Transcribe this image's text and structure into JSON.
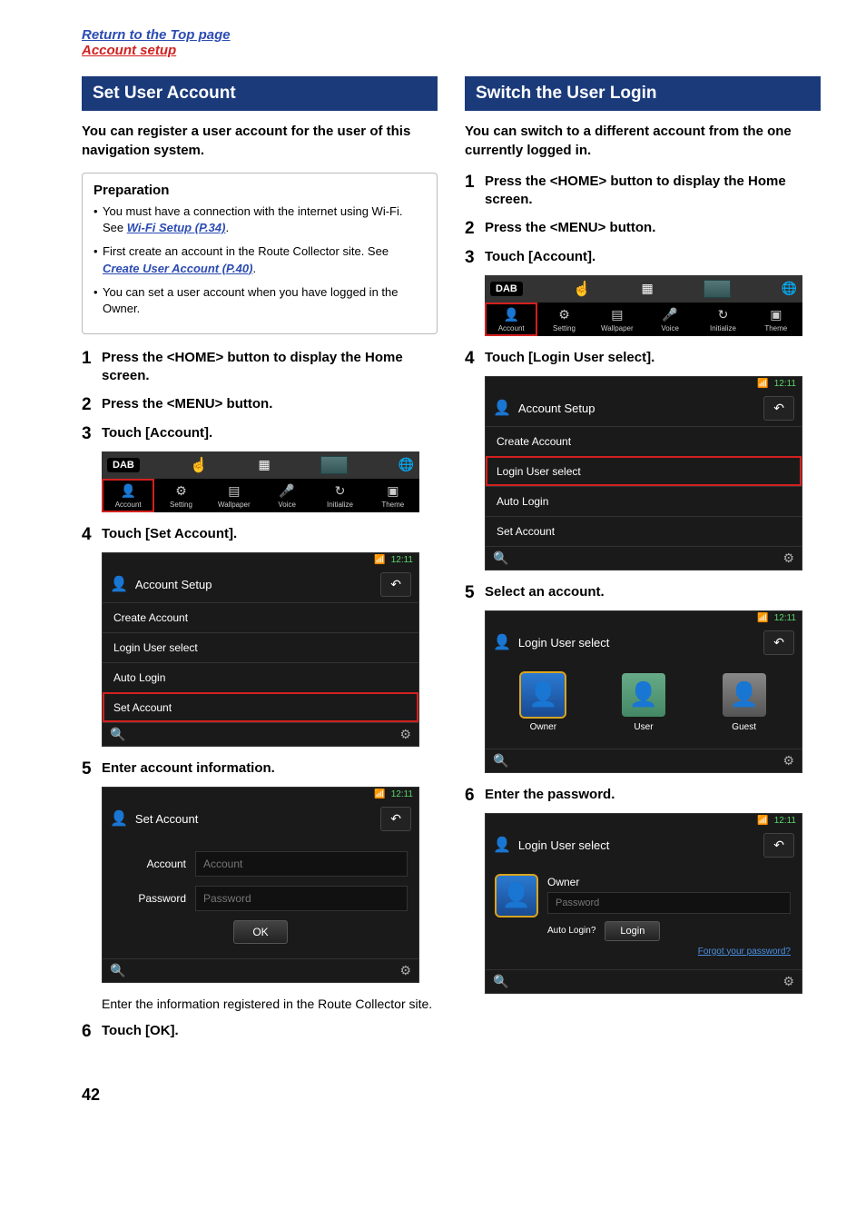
{
  "topLinks": {
    "return": "Return to the Top page",
    "account": "Account setup"
  },
  "left": {
    "header": "Set User Account",
    "intro": "You can register a user account for the user of this navigation system.",
    "prep": {
      "title": "Preparation",
      "items": {
        "i1a": "You must have a connection with the internet using Wi-Fi. See ",
        "i1link": "Wi-Fi Setup (P.34)",
        "i1b": ".",
        "i2a": "First create an account in the Route Collector site. See ",
        "i2link": "Create User Account (P.40)",
        "i2b": ".",
        "i3": "You can set a user account when you have logged in the Owner."
      }
    },
    "steps": {
      "s1": "Press the <HOME> button to display the Home screen.",
      "s2": "Press the <MENU> button.",
      "s3": "Touch [Account].",
      "s4": "Touch [Set Account].",
      "s5": "Enter account information.",
      "s5note": "Enter the information registered in the Route Collector site.",
      "s6": "Touch [OK]."
    }
  },
  "right": {
    "header": "Switch the User Login",
    "intro": "You can switch to a different account from the one currently logged in.",
    "steps": {
      "s1": "Press the <HOME> button to display the Home screen.",
      "s2": "Press the <MENU> button.",
      "s3": "Touch [Account].",
      "s4": "Touch [Login User select].",
      "s5": "Select an account.",
      "s6": "Enter the password."
    }
  },
  "ql": {
    "badge": "DAB",
    "items": {
      "account": "Account",
      "setting": "Setting",
      "wallpaper": "Wallpaper",
      "voice": "Voice",
      "initialize": "Initialize",
      "theme": "Theme"
    }
  },
  "menu": {
    "time": "12:11",
    "title": "Account Setup",
    "rows": {
      "create": "Create Account",
      "login": "Login User select",
      "auto": "Auto Login",
      "set": "Set Account"
    },
    "setAccountTitle": "Set Account",
    "form": {
      "accountLbl": "Account",
      "accountPh": "Account",
      "pwLbl": "Password",
      "pwPh": "Password",
      "ok": "OK"
    },
    "loginSelectTitle": "Login User select",
    "users": {
      "owner": "Owner",
      "user": "User",
      "guest": "Guest"
    },
    "loginPw": {
      "name": "Owner",
      "pwPh": "Password",
      "auto": "Auto Login?",
      "login": "Login",
      "forgot": "Forgot your password?"
    }
  },
  "pageNum": "42"
}
